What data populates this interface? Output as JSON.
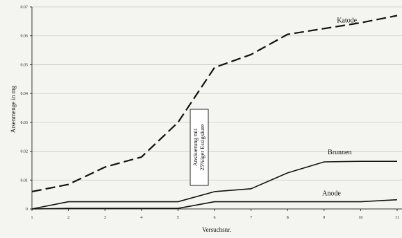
{
  "chart_data": {
    "type": "line",
    "xlabel": "Versuchsnr.",
    "ylabel": "Arsenmenge in mg",
    "x": [
      1,
      2,
      3,
      4,
      5,
      6,
      7,
      8,
      9,
      10,
      11
    ],
    "xtick_labels": [
      "1",
      "2",
      "3",
      "4",
      "5",
      "6",
      "7",
      "8",
      "9",
      "10",
      "11"
    ],
    "ylim": [
      0,
      0.07
    ],
    "yticks": [
      0,
      0.01,
      0.02,
      0.03,
      0.04,
      0.05,
      0.06,
      0.07
    ],
    "ytick_labels": [
      "0",
      "0.01",
      "0.02",
      "0.03",
      "0.04",
      "0.05",
      "0.06",
      "0.07"
    ],
    "grid": true,
    "series": [
      {
        "name": "Katode",
        "style": "dashed",
        "color": "#111111",
        "values": [
          0.006,
          0.0085,
          0.0145,
          0.018,
          0.03,
          0.049,
          0.0535,
          0.0605,
          0.0625,
          0.0645,
          0.067
        ]
      },
      {
        "name": "Brunnen",
        "style": "solid",
        "color": "#111111",
        "values": [
          0,
          0.0025,
          0.0025,
          0.0025,
          0.0025,
          0.006,
          0.007,
          0.0125,
          0.0163,
          0.0165,
          0.0165
        ]
      },
      {
        "name": "Anode",
        "style": "solid",
        "color": "#111111",
        "values": [
          0,
          0.0002,
          0.0002,
          0.0002,
          0.0002,
          0.0025,
          0.0025,
          0.0025,
          0.0025,
          0.0025,
          0.0032
        ]
      }
    ],
    "annotation": {
      "lines": [
        "Ansäuerung mit",
        "25%iger Essigsäure"
      ],
      "at_x": 6
    }
  }
}
